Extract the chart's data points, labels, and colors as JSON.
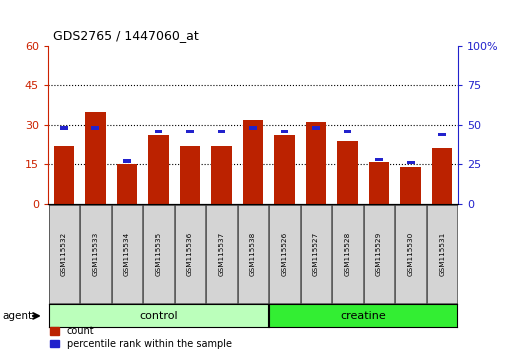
{
  "title": "GDS2765 / 1447060_at",
  "samples": [
    "GSM115532",
    "GSM115533",
    "GSM115534",
    "GSM115535",
    "GSM115536",
    "GSM115537",
    "GSM115538",
    "GSM115526",
    "GSM115527",
    "GSM115528",
    "GSM115529",
    "GSM115530",
    "GSM115531"
  ],
  "counts": [
    22,
    35,
    15,
    26,
    22,
    22,
    32,
    26,
    31,
    24,
    16,
    14,
    21
  ],
  "percentile_ranks": [
    48,
    48,
    27,
    46,
    46,
    46,
    48,
    46,
    48,
    46,
    28,
    26,
    44
  ],
  "groups": [
    "control",
    "control",
    "control",
    "control",
    "control",
    "control",
    "control",
    "creatine",
    "creatine",
    "creatine",
    "creatine",
    "creatine",
    "creatine"
  ],
  "group_colors": {
    "control": "#bbffbb",
    "creatine": "#33ee33"
  },
  "bar_color_red": "#bb2200",
  "bar_color_blue": "#2222cc",
  "ylim_left": [
    0,
    60
  ],
  "ylim_right": [
    0,
    100
  ],
  "yticks_left": [
    0,
    15,
    30,
    45,
    60
  ],
  "yticks_right": [
    0,
    25,
    50,
    75,
    100
  ],
  "bg_color": "#ffffff",
  "agent_label": "agent",
  "legend_count": "count",
  "legend_pct": "percentile rank within the sample"
}
